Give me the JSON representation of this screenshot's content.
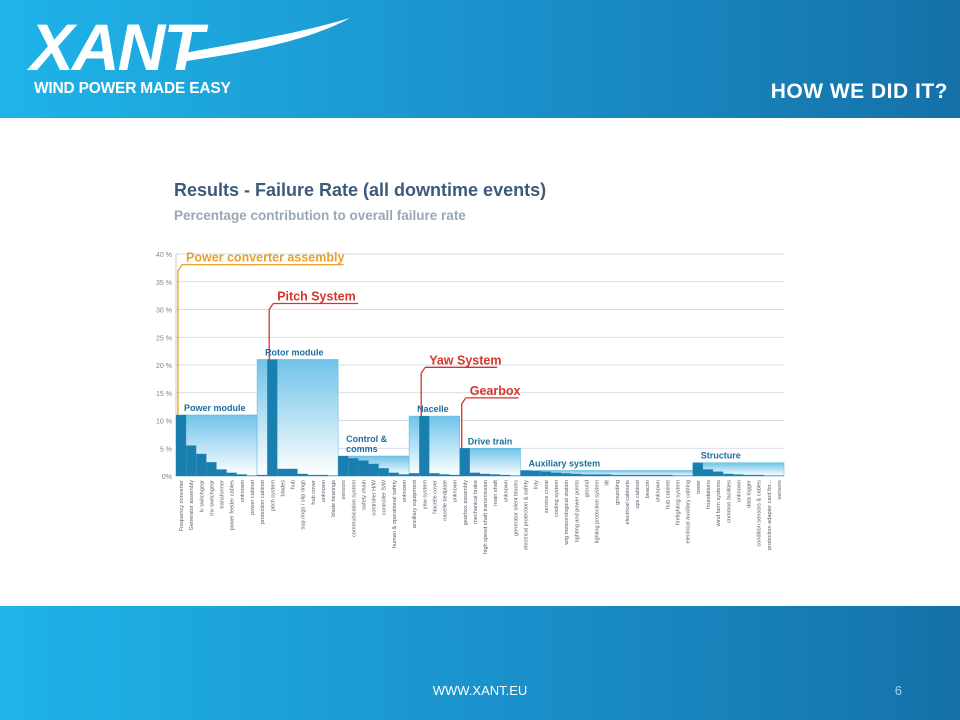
{
  "header": {
    "logo": "XANT",
    "tagline": "WIND POWER MADE EASY",
    "title": "HOW WE DID IT?"
  },
  "footer": {
    "url": "WWW.XANT.EU",
    "page": "6"
  },
  "colors": {
    "header_from": "#1fb4e8",
    "header_to": "#1571a8",
    "bar_dark": "#1a7fae",
    "bar_light_top": "#6fc3ea",
    "bar_light_bottom": "#ffffff",
    "callout_orange": "#e8a12a",
    "callout_red": "#d6342c",
    "chart_title": "#3d5a7a"
  },
  "chart_data": {
    "type": "bar",
    "title": "Results - Failure Rate (all downtime events)",
    "subtitle": "Percentage contribution to overall failure rate",
    "ylim": [
      0,
      40
    ],
    "yticks": [
      0,
      5,
      10,
      15,
      20,
      25,
      30,
      35,
      40
    ],
    "ytick_labels": [
      "0%",
      "5 %",
      "10 %",
      "15 %",
      "20 %",
      "25 %",
      "30 %",
      "35 %",
      "40 %"
    ],
    "grid": true,
    "categories": [
      "Frequency converter",
      "Generator assembly",
      "lv switchgear",
      "mv switchgear",
      "transformer",
      "power feeder cables",
      "unknown",
      "power cabinet",
      "protection cabinet",
      "pitch system",
      "blades",
      "hub",
      "sup rings / slip rings",
      "hub cover",
      "unknown",
      "blade bearings",
      "sensors",
      "communication system",
      "safety chain",
      "controller H/W",
      "controller S/W",
      "human & operational safety",
      "unknown",
      "ancillary equipment",
      "yaw system",
      "Nacelle cover",
      "nacelle bedplate",
      "unknown",
      "gearbox assembly",
      "mechanical brake",
      "high speed shaft transmission",
      "main shaft",
      "unknown",
      "generator silent blocks",
      "electrical protection & safety",
      "tray",
      "service crane",
      "cooling system",
      "wtg meteorological station",
      "lighting and power points",
      "ground",
      "lighting protection system",
      "lift",
      "grounding",
      "electrical cabinets",
      "ups cabinet",
      "beacon",
      "unknown",
      "hub cabinet",
      "firefighting system",
      "electrical auxiliary cabling",
      "tower",
      "foundations",
      "wind farm systems",
      "common facilities",
      "unknown",
      "data logger",
      "condition sensors & cables",
      "protection adapter card for...",
      "sensors"
    ],
    "values": [
      11,
      5.5,
      4,
      2.5,
      1.2,
      0.6,
      0.3,
      0.1,
      0.2,
      21,
      1.3,
      1.3,
      0.4,
      0.2,
      0.2,
      0.1,
      3.6,
      3.2,
      2.8,
      2.2,
      1.4,
      0.6,
      0.3,
      0.5,
      10.8,
      0.5,
      0.3,
      0.2,
      5,
      0.6,
      0.4,
      0.3,
      0.2,
      0.1,
      1,
      0.9,
      0.8,
      0.6,
      0.5,
      0.4,
      0.3,
      0.3,
      0.3,
      0.2,
      0.2,
      0.2,
      0.2,
      0.2,
      0.2,
      0.1,
      0.1,
      2.4,
      1.2,
      0.8,
      0.4,
      0.3,
      0.2,
      0.2,
      0.1,
      0.1
    ],
    "groups": [
      {
        "name": "Power module",
        "total": 11,
        "start": 0,
        "end": 7
      },
      {
        "name": "Rotor module",
        "total": 21,
        "start": 8,
        "end": 15
      },
      {
        "name": "Control & comms",
        "total": 3.6,
        "start": 16,
        "end": 22
      },
      {
        "name": "Nacelle",
        "total": 10.8,
        "start": 23,
        "end": 27
      },
      {
        "name": "Drive train",
        "total": 5,
        "start": 28,
        "end": 33
      },
      {
        "name": "Auxiliary system",
        "total": 1,
        "start": 34,
        "end": 50
      },
      {
        "name": "Structure",
        "total": 2.4,
        "start": 51,
        "end": 59
      }
    ],
    "callouts": [
      {
        "text": "Power converter assembly",
        "color": "orange",
        "category_index": 0,
        "value": 37
      },
      {
        "text": "Pitch System",
        "color": "red",
        "category_index": 9,
        "value": 30
      },
      {
        "text": "Yaw System",
        "color": "red",
        "category_index": 24,
        "value": 18.5
      },
      {
        "text": "Gearbox",
        "color": "red",
        "category_index": 28,
        "value": 13
      }
    ]
  }
}
